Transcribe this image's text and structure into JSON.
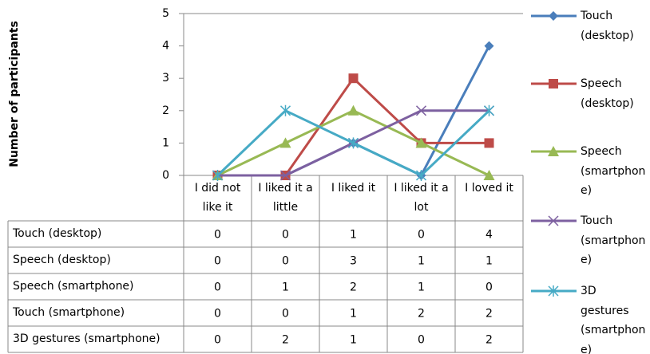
{
  "chart_data": {
    "type": "line",
    "y_axis_label": "Number of participants",
    "categories": [
      "I did not like it",
      "I liked it a little",
      "I liked it",
      "I liked it a lot",
      "I loved it"
    ],
    "ylim": [
      0,
      5
    ],
    "yticks": [
      0,
      1,
      2,
      3,
      4,
      5
    ],
    "grid": false,
    "legend": "right",
    "data_table": true,
    "series": [
      {
        "name": "Touch (desktop)",
        "color": "#4a7ebb",
        "marker": "diamond",
        "values": [
          0,
          0,
          1,
          0,
          4
        ]
      },
      {
        "name": "Speech (desktop)",
        "color": "#be4b48",
        "marker": "square",
        "values": [
          0,
          0,
          3,
          1,
          1
        ]
      },
      {
        "name": "Speech (smartphone)",
        "color": "#98b954",
        "marker": "triangle",
        "values": [
          0,
          1,
          2,
          1,
          0
        ]
      },
      {
        "name": "Touch (smartphone)",
        "color": "#7d60a0",
        "marker": "x",
        "values": [
          0,
          0,
          1,
          2,
          2
        ]
      },
      {
        "name": "3D gestures (smartphone)",
        "color": "#46aac5",
        "marker": "star",
        "values": [
          0,
          2,
          1,
          0,
          2
        ]
      }
    ]
  }
}
